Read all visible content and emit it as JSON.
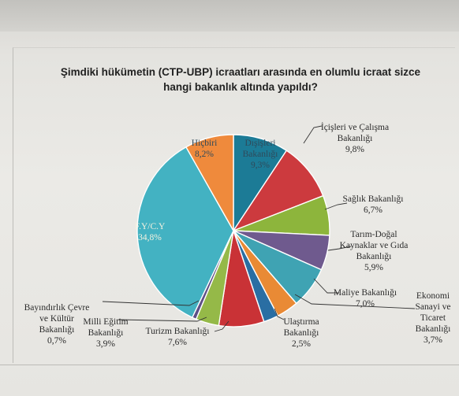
{
  "chart_data": {
    "type": "pie",
    "title": "Şimdiki hükümetin (CTP-UBP) icraatları arasında en olumlu icraat sizce hangi bakanlık altında yapıldı?",
    "title_lines": [
      "Şimdiki hükümetin (CTP-UBP) icraatları arasında en olumlu icraat sizce",
      "hangi bakanlık altında yapıldı?"
    ],
    "start_angle_deg": 0,
    "direction": "clockwise",
    "slices": [
      {
        "label_lines": [
          "Dışişleri",
          "Bakanlığı"
        ],
        "value": 9.3,
        "value_label": "9,3%",
        "color": "#1c7b96"
      },
      {
        "label_lines": [
          "İçişleri ve Çalışma",
          "Bakanlığı"
        ],
        "value": 9.8,
        "value_label": "9,8%",
        "color": "#cc3a3e"
      },
      {
        "label_lines": [
          "Sağlık Bakanlığı"
        ],
        "value": 6.7,
        "value_label": "6,7%",
        "color": "#8db53c"
      },
      {
        "label_lines": [
          "Tarım-Doğal",
          "Kaynaklar ve Gıda",
          "Bakanlığı"
        ],
        "value": 5.9,
        "value_label": "5,9%",
        "color": "#6f5a8e"
      },
      {
        "label_lines": [
          "Maliye Bakanlığı"
        ],
        "value": 7.0,
        "value_label": "7,0%",
        "color": "#3fa3b3"
      },
      {
        "label_lines": [
          "Ekonomi",
          "Sanayi ve",
          "Ticaret",
          "Bakanlığı"
        ],
        "value": 3.7,
        "value_label": "3,7%",
        "color": "#e98a35"
      },
      {
        "label_lines": [
          "Ulaştırma",
          "Bakanlığı"
        ],
        "value": 2.5,
        "value_label": "2,5%",
        "color": "#2a6ea3"
      },
      {
        "label_lines": [
          "Turizm Bakanlığı"
        ],
        "value": 7.6,
        "value_label": "7,6%",
        "color": "#c93236"
      },
      {
        "label_lines": [
          "Milli Eğitim",
          "Bakanlığı"
        ],
        "value": 3.9,
        "value_label": "3,9%",
        "color": "#95b948"
      },
      {
        "label_lines": [
          "Bayındırlık Çevre",
          "ve Kültür",
          "Bakanlığı"
        ],
        "value": 0.7,
        "value_label": "0,7%",
        "color": "#5e4f86"
      },
      {
        "label_lines": [
          "F.Y/C.Y"
        ],
        "value": 34.8,
        "value_label": "34,8%",
        "color": "#43b2c2"
      },
      {
        "label_lines": [
          "Hiçbiri"
        ],
        "value": 8.2,
        "value_label": "8,2%",
        "color": "#ef8a3c"
      }
    ]
  }
}
